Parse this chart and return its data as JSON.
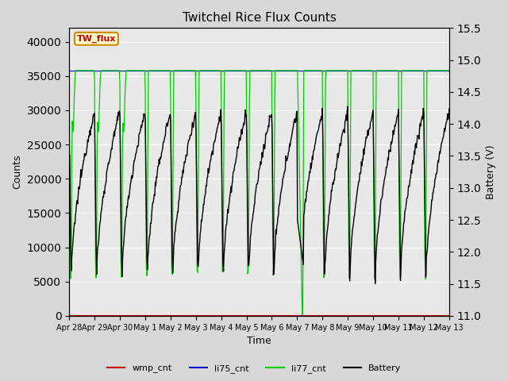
{
  "title": "Twitchel Rice Flux Counts",
  "xlabel": "Time",
  "ylabel_left": "Counts",
  "ylabel_right": "Battery (V)",
  "ylim_left": [
    0,
    42000
  ],
  "ylim_right": [
    11.0,
    15.5
  ],
  "yticks_left": [
    0,
    5000,
    10000,
    15000,
    20000,
    25000,
    30000,
    35000,
    40000
  ],
  "yticks_right": [
    11.0,
    11.5,
    12.0,
    12.5,
    13.0,
    13.5,
    14.0,
    14.5,
    15.0,
    15.5
  ],
  "background_color": "#d8d8d8",
  "plot_bg_color": "#e8e8e8",
  "annotation_box_text": "TW_flux",
  "annotation_box_facecolor": "#ffffcc",
  "annotation_box_edgecolor": "#cc8800",
  "annotation_text_color": "#cc0000",
  "li77_color": "#00cc00",
  "li75_color": "#0000cc",
  "wmp_color": "#cc0000",
  "battery_color": "#000000",
  "grid_color": "#ffffff",
  "figsize": [
    6.4,
    4.8
  ],
  "dpi": 100,
  "li77_flat_value": 35800,
  "x_tick_labels": [
    "Apr 28",
    "Apr 29",
    "Apr 30",
    "May 1",
    "May 2",
    "May 3",
    "May 4",
    "May 5",
    "May 6",
    "May 7",
    "May 8",
    "May 9",
    "May 10",
    "May 11",
    "May 12",
    "May 13"
  ]
}
